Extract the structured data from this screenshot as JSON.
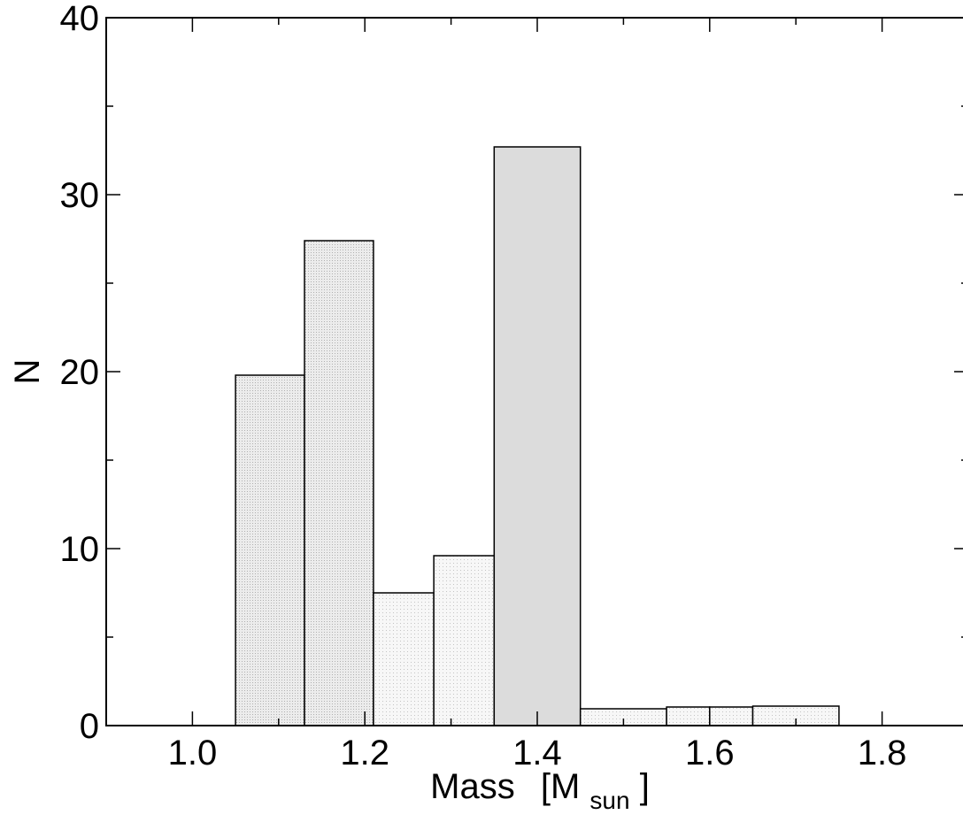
{
  "chart_data": {
    "type": "bar",
    "histogram": true,
    "title": "",
    "xlabel": "Mass",
    "xlabel_unit_open": "[M",
    "xlabel_unit_sub": "sun",
    "xlabel_unit_close": "]",
    "ylabel": "N",
    "xlim": [
      0.9,
      1.9
    ],
    "ylim": [
      0,
      40
    ],
    "xticks": [
      1.0,
      1.2,
      1.4,
      1.6,
      1.8
    ],
    "xtick_labels": [
      "1.0",
      "1.2",
      "1.4",
      "1.6",
      "1.8"
    ],
    "yticks": [
      0,
      10,
      20,
      30,
      40
    ],
    "ytick_labels": [
      "0",
      "10",
      "20",
      "30",
      "40"
    ],
    "grid": false,
    "bins": [
      {
        "x0": 1.05,
        "x1": 1.13,
        "value": 19.8,
        "fill": "#e4e4e4",
        "pattern": "dense-dots"
      },
      {
        "x0": 1.13,
        "x1": 1.21,
        "value": 27.4,
        "fill": "#e4e4e4",
        "pattern": "dense-dots"
      },
      {
        "x0": 1.21,
        "x1": 1.28,
        "value": 7.5,
        "fill": "#f4f4f4",
        "pattern": "sparse-dots"
      },
      {
        "x0": 1.28,
        "x1": 1.35,
        "value": 9.6,
        "fill": "#f4f4f4",
        "pattern": "sparse-dots"
      },
      {
        "x0": 1.35,
        "x1": 1.45,
        "value": 32.7,
        "fill": "#dcdcdc",
        "pattern": "solid"
      },
      {
        "x0": 1.45,
        "x1": 1.55,
        "value": 0.95,
        "fill": "#f4f4f4",
        "pattern": "sparse-dots"
      },
      {
        "x0": 1.55,
        "x1": 1.6,
        "value": 1.05,
        "fill": "#f4f4f4",
        "pattern": "sparse-dots"
      },
      {
        "x0": 1.6,
        "x1": 1.65,
        "value": 1.05,
        "fill": "#f4f4f4",
        "pattern": "sparse-dots"
      },
      {
        "x0": 1.65,
        "x1": 1.75,
        "value": 1.1,
        "fill": "#f4f4f4",
        "pattern": "sparse-dots"
      }
    ]
  }
}
